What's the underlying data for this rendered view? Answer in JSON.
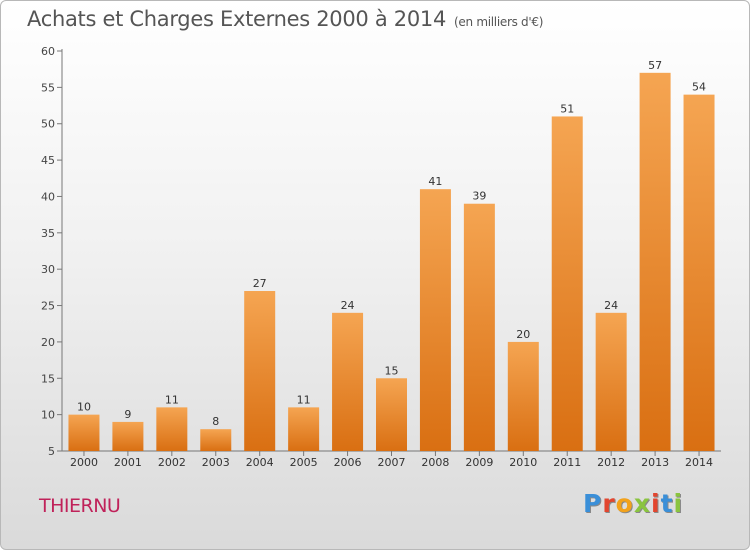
{
  "header": {
    "title": "Achats et Charges Externes 2000 à 2014",
    "subtitle": "(en milliers d'€)"
  },
  "commune": "THIERNU",
  "logo": {
    "text": "Proxiti",
    "colors": [
      "#3a8fd8",
      "#e2462f",
      "#f2a21c",
      "#8ac43f",
      "#e2462f",
      "#3a8fd8",
      "#8ac43f"
    ]
  },
  "chart_data": {
    "type": "bar",
    "categories": [
      "2000",
      "2001",
      "2002",
      "2003",
      "2004",
      "2005",
      "2006",
      "2007",
      "2008",
      "2009",
      "2010",
      "2011",
      "2012",
      "2013",
      "2014"
    ],
    "values": [
      10,
      9,
      11,
      8,
      27,
      11,
      24,
      15,
      41,
      39,
      20,
      51,
      24,
      57,
      54
    ],
    "ylim": [
      5,
      60
    ],
    "yticks": [
      5,
      10,
      15,
      20,
      25,
      30,
      35,
      40,
      45,
      50,
      55,
      60
    ],
    "bar_color_top": "#f5a552",
    "bar_color_bottom": "#d96f12",
    "grid": false
  }
}
